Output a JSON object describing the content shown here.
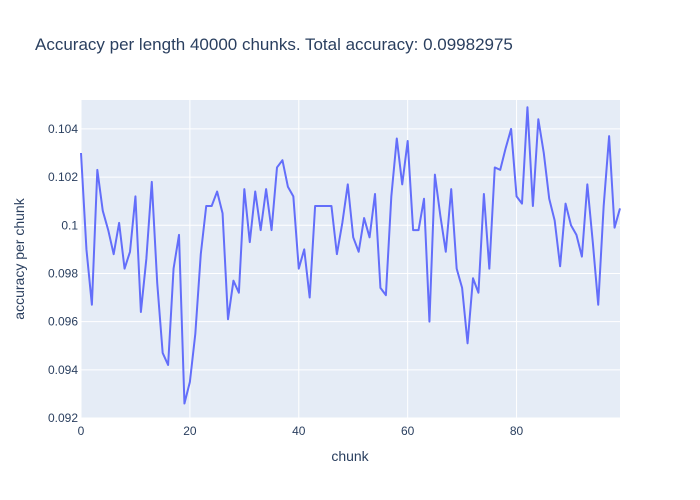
{
  "chart_data": {
    "type": "line",
    "title": "Accuracy per length 40000 chunks. Total accuracy: 0.09982975",
    "xlabel": "chunk",
    "ylabel": "accuracy per chunk",
    "xlim": [
      0,
      99
    ],
    "ylim": [
      0.092,
      0.1052
    ],
    "x_ticks": [
      0,
      20,
      40,
      60,
      80
    ],
    "x_tick_labels": [
      "0",
      "20",
      "40",
      "60",
      "80"
    ],
    "y_ticks": [
      0.092,
      0.094,
      0.096,
      0.098,
      0.1,
      0.102,
      0.104
    ],
    "y_tick_labels": [
      "0.092",
      "0.094",
      "0.096",
      "0.098",
      "0.1",
      "0.102",
      "0.104"
    ],
    "grid": true,
    "colors": {
      "line": "#636efa",
      "plot_bg": "#e5ecf6",
      "grid": "#ffffff",
      "text": "#2a3f5f"
    },
    "series": [
      {
        "x": [
          0,
          1,
          2,
          3,
          4,
          5,
          6,
          7,
          8,
          9,
          10,
          11,
          12,
          13,
          14,
          15,
          16,
          17,
          18,
          19,
          20,
          21,
          22,
          23,
          24,
          25,
          26,
          27,
          28,
          29,
          30,
          31,
          32,
          33,
          34,
          35,
          36,
          37,
          38,
          39,
          40,
          41,
          42,
          43,
          44,
          45,
          46,
          47,
          48,
          49,
          50,
          51,
          52,
          53,
          54,
          55,
          56,
          57,
          58,
          59,
          60,
          61,
          62,
          63,
          64,
          65,
          66,
          67,
          68,
          69,
          70,
          71,
          72,
          73,
          74,
          75,
          76,
          77,
          78,
          79,
          80,
          81,
          82,
          83,
          84,
          85,
          86,
          87,
          88,
          89,
          90,
          91,
          92,
          93,
          94,
          95,
          96,
          97,
          98,
          99
        ],
        "values": [
          0.103,
          0.099,
          0.0967,
          0.1023,
          0.1006,
          0.0998,
          0.0988,
          0.1001,
          0.0982,
          0.0989,
          0.1012,
          0.0964,
          0.0986,
          0.1018,
          0.0976,
          0.0947,
          0.0942,
          0.0982,
          0.0996,
          0.0926,
          0.0935,
          0.0955,
          0.0988,
          0.1008,
          0.1008,
          0.1014,
          0.1005,
          0.0961,
          0.0977,
          0.0972,
          0.1015,
          0.0993,
          0.1014,
          0.0998,
          0.1015,
          0.0998,
          0.1024,
          0.1027,
          0.1016,
          0.1012,
          0.0982,
          0.099,
          0.097,
          0.1008,
          0.1008,
          0.1008,
          0.1008,
          0.0988,
          0.1001,
          0.1017,
          0.0995,
          0.0989,
          0.1003,
          0.0995,
          0.1013,
          0.0974,
          0.0971,
          0.1012,
          0.1036,
          0.1017,
          0.1035,
          0.0998,
          0.0998,
          0.1011,
          0.096,
          0.1021,
          0.1004,
          0.0989,
          0.1015,
          0.0982,
          0.0974,
          0.0951,
          0.0978,
          0.0972,
          0.1013,
          0.0982,
          0.1024,
          0.1023,
          0.1032,
          0.104,
          0.1012,
          0.1009,
          0.1049,
          0.1008,
          0.1044,
          0.103,
          0.1011,
          0.1002,
          0.0983,
          0.1009,
          0.1,
          0.0996,
          0.0987,
          0.1017,
          0.0993,
          0.0967,
          0.1008,
          0.1037,
          0.0999,
          0.1007
        ]
      }
    ]
  }
}
